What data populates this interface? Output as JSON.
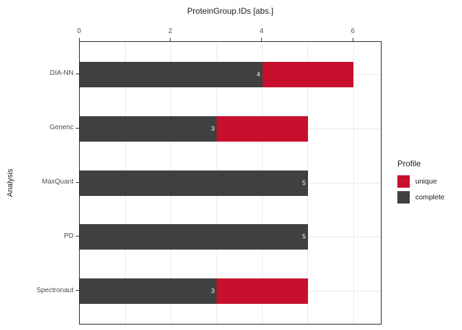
{
  "chart_data": {
    "type": "bar",
    "orientation": "horizontal",
    "stacked": true,
    "title": "ProteinGroup.IDs [abs.]",
    "xlabel": "",
    "ylabel": "Analysis",
    "categories": [
      "DIA-NN",
      "Generic",
      "MaxQuant",
      "PD",
      "Spectronaut"
    ],
    "series": [
      {
        "name": "complete",
        "color": "#404040",
        "values": [
          4,
          3,
          5,
          5,
          3
        ],
        "bar_labels": [
          "4",
          "3",
          "5",
          "5",
          "3"
        ],
        "bar_label_color": "#ffffff"
      },
      {
        "name": "unique",
        "color": "#C8102E",
        "values": [
          2,
          2,
          0,
          0,
          2
        ],
        "bar_labels": [
          "",
          "",
          "",
          "",
          ""
        ],
        "bar_label_color": "#ffffff"
      }
    ],
    "totals": [
      6,
      5,
      5,
      5,
      5
    ],
    "x_ticks": [
      0,
      2,
      4,
      6
    ],
    "xlim": [
      0,
      6.6
    ],
    "gridlines_x": [
      1,
      2,
      3,
      4,
      5,
      6
    ],
    "axis_position": "top",
    "grid": true,
    "legend_position": "right"
  },
  "legend": {
    "title": "Profile",
    "items": [
      {
        "label": "unique",
        "color": "#C8102E"
      },
      {
        "label": "complete",
        "color": "#404040"
      }
    ]
  }
}
